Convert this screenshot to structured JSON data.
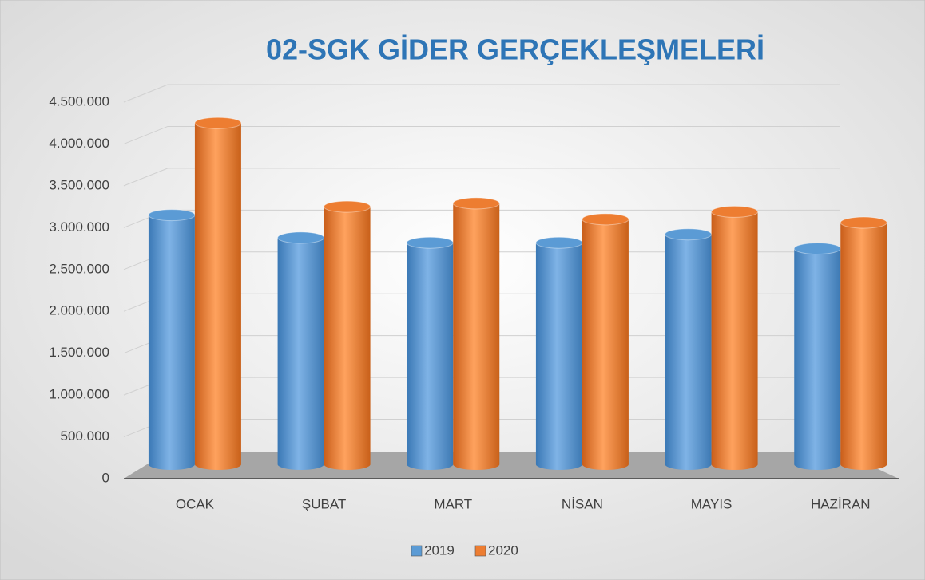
{
  "chart_data": {
    "type": "bar",
    "title": "02-SGK GİDER GERÇEKLEŞMELERİ",
    "categories": [
      "OCAK",
      "ŞUBAT",
      "MART",
      "NİSAN",
      "MAYIS",
      "HAZİRAN"
    ],
    "series": [
      {
        "name": "2019",
        "color": "#5b9bd5",
        "values": [
          3150000,
          2880000,
          2820000,
          2820000,
          2920000,
          2750000
        ]
      },
      {
        "name": "2020",
        "color": "#ed7d31",
        "values": [
          4250000,
          3250000,
          3290000,
          3100000,
          3190000,
          3060000
        ]
      }
    ],
    "ylim": [
      0,
      4500000
    ],
    "yticks": [
      0,
      {
        "value": 500000,
        "label": "500.000"
      },
      {
        "value": 1000000,
        "label": "1.000.000"
      },
      {
        "value": 1500000,
        "label": "1.500.000"
      },
      {
        "value": 2000000,
        "label": "2.000.000"
      },
      {
        "value": 2500000,
        "label": "2.500.000"
      },
      {
        "value": 3000000,
        "label": "3.000.000"
      },
      {
        "value": 3500000,
        "label": "3.500.000"
      },
      {
        "value": 4000000,
        "label": "4.000.000"
      },
      {
        "value": 4500000,
        "label": "4.500.000"
      }
    ],
    "grid": true,
    "legend": "bottom"
  }
}
